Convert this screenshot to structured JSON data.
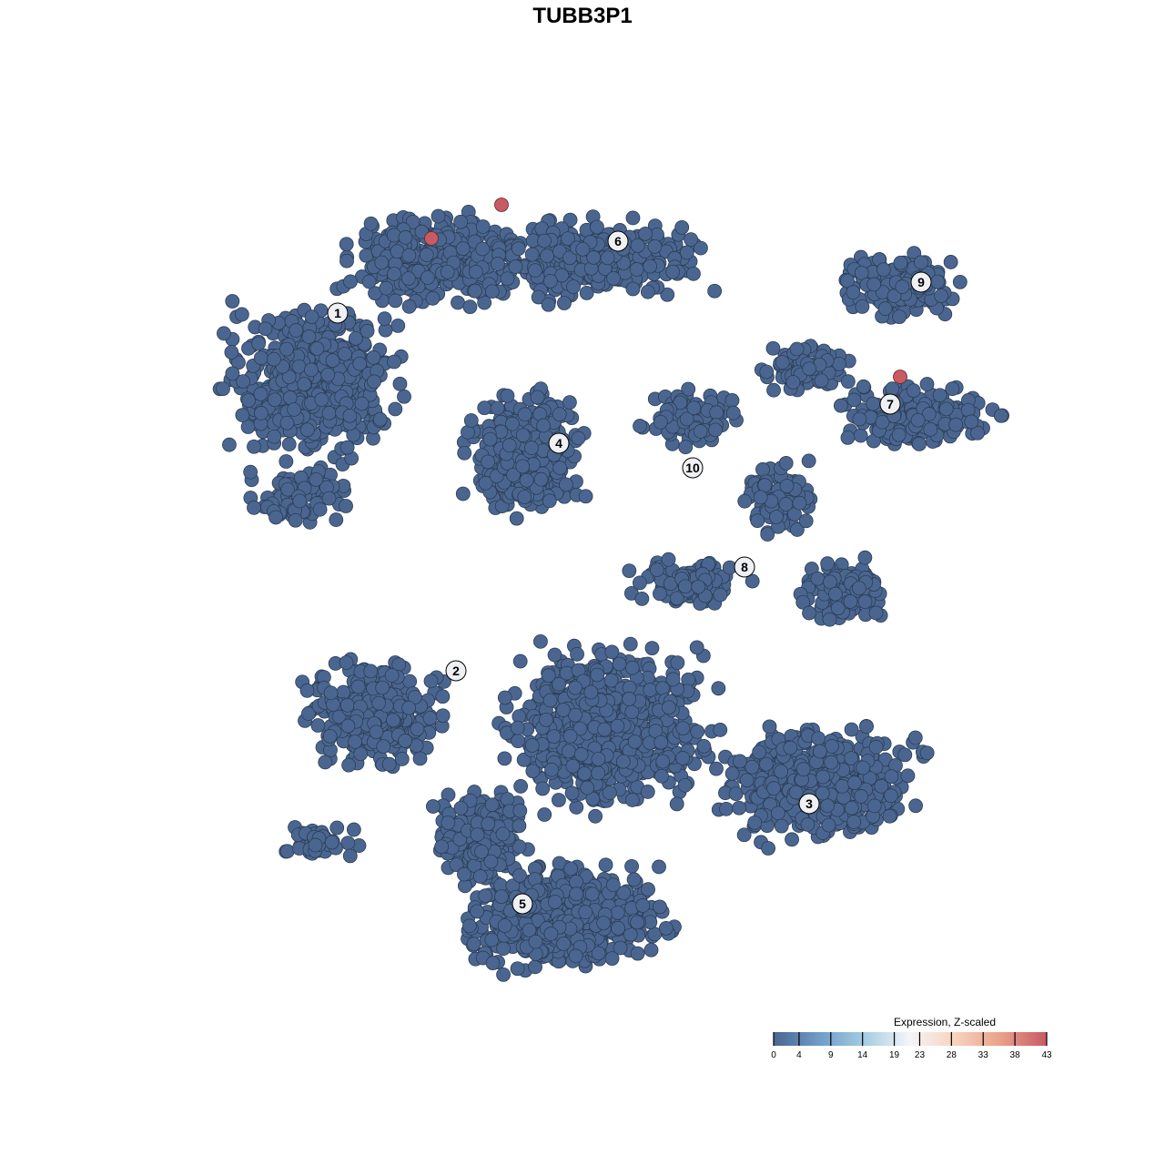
{
  "chart_data": {
    "type": "scatter",
    "title": "TUBB3P1",
    "xlabel": "",
    "ylabel": "",
    "grid": false,
    "point_color_low": "#4a6690",
    "point_color_high": "#c75a63",
    "cluster_labels": [
      "1",
      "2",
      "3",
      "4",
      "5",
      "6",
      "7",
      "8",
      "9",
      "10"
    ],
    "highlighted_points_count": 3,
    "legend": {
      "title": "Expression, Z-scaled",
      "placement": "bottom-right",
      "range": [
        0,
        43
      ],
      "ticks": [
        "0",
        "4",
        "9",
        "14",
        "19",
        "23",
        "28",
        "33",
        "38",
        "43"
      ],
      "colors": [
        "#4a6690",
        "#6f9cc8",
        "#a5cde2",
        "#f4f6f8",
        "#f8d2bd",
        "#e9a08a",
        "#c75a63"
      ]
    }
  }
}
